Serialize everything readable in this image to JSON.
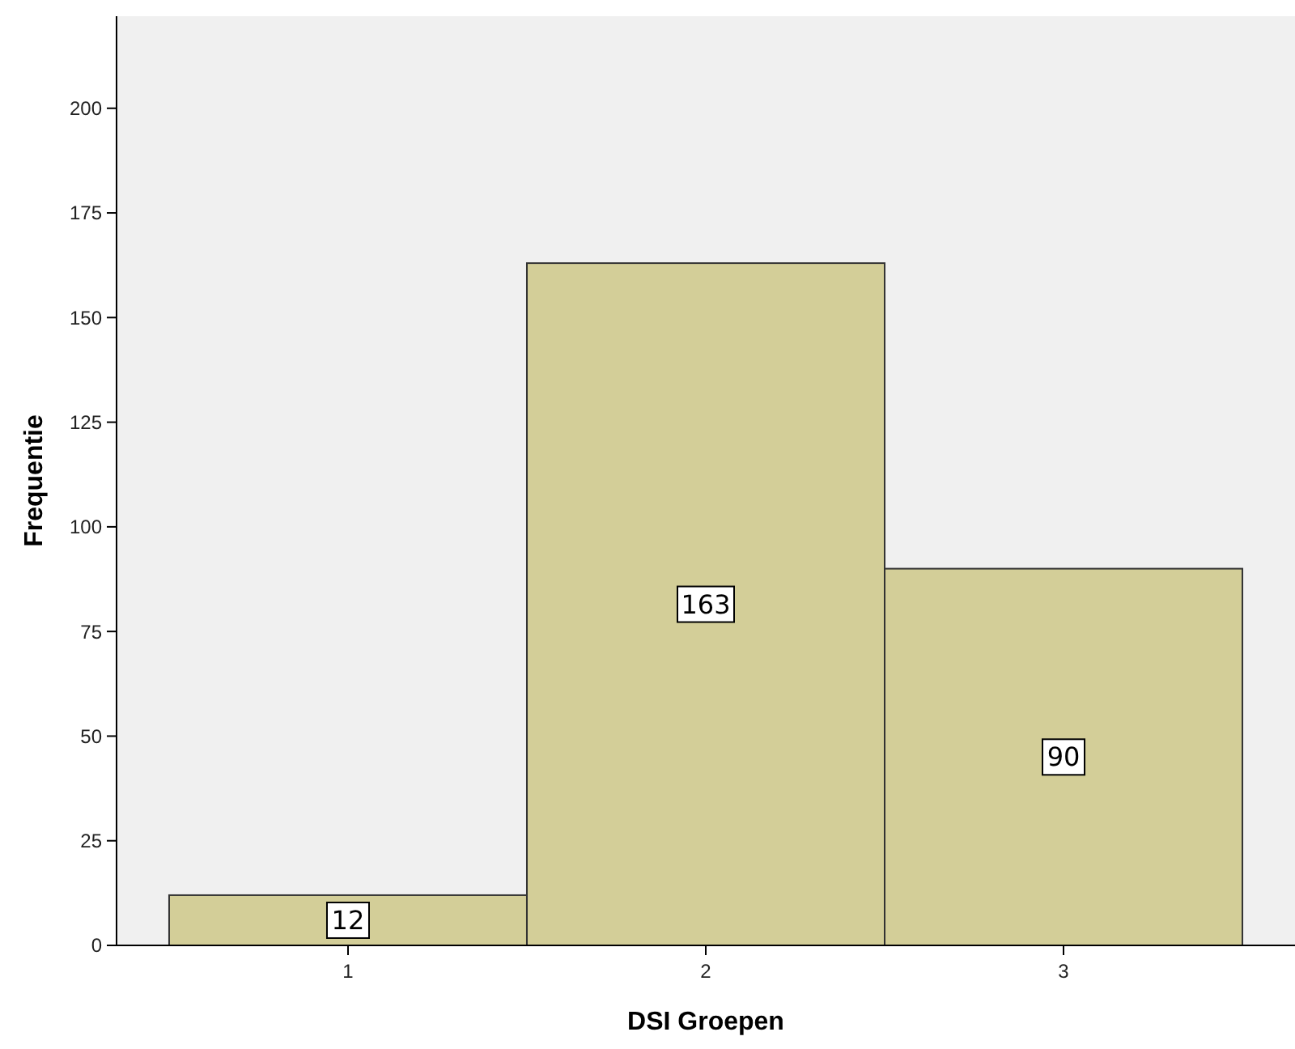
{
  "chart_data": {
    "type": "bar",
    "xlabel": "DSI Groepen",
    "ylabel": "Frequentie",
    "categories": [
      "1",
      "2",
      "3"
    ],
    "values": [
      12,
      163,
      90
    ],
    "color": "#d3ce98",
    "ylim": [
      0,
      222
    ],
    "yticks": [
      0,
      25,
      50,
      75,
      100,
      125,
      150,
      175,
      200
    ],
    "grid": false,
    "data_labels": true
  }
}
